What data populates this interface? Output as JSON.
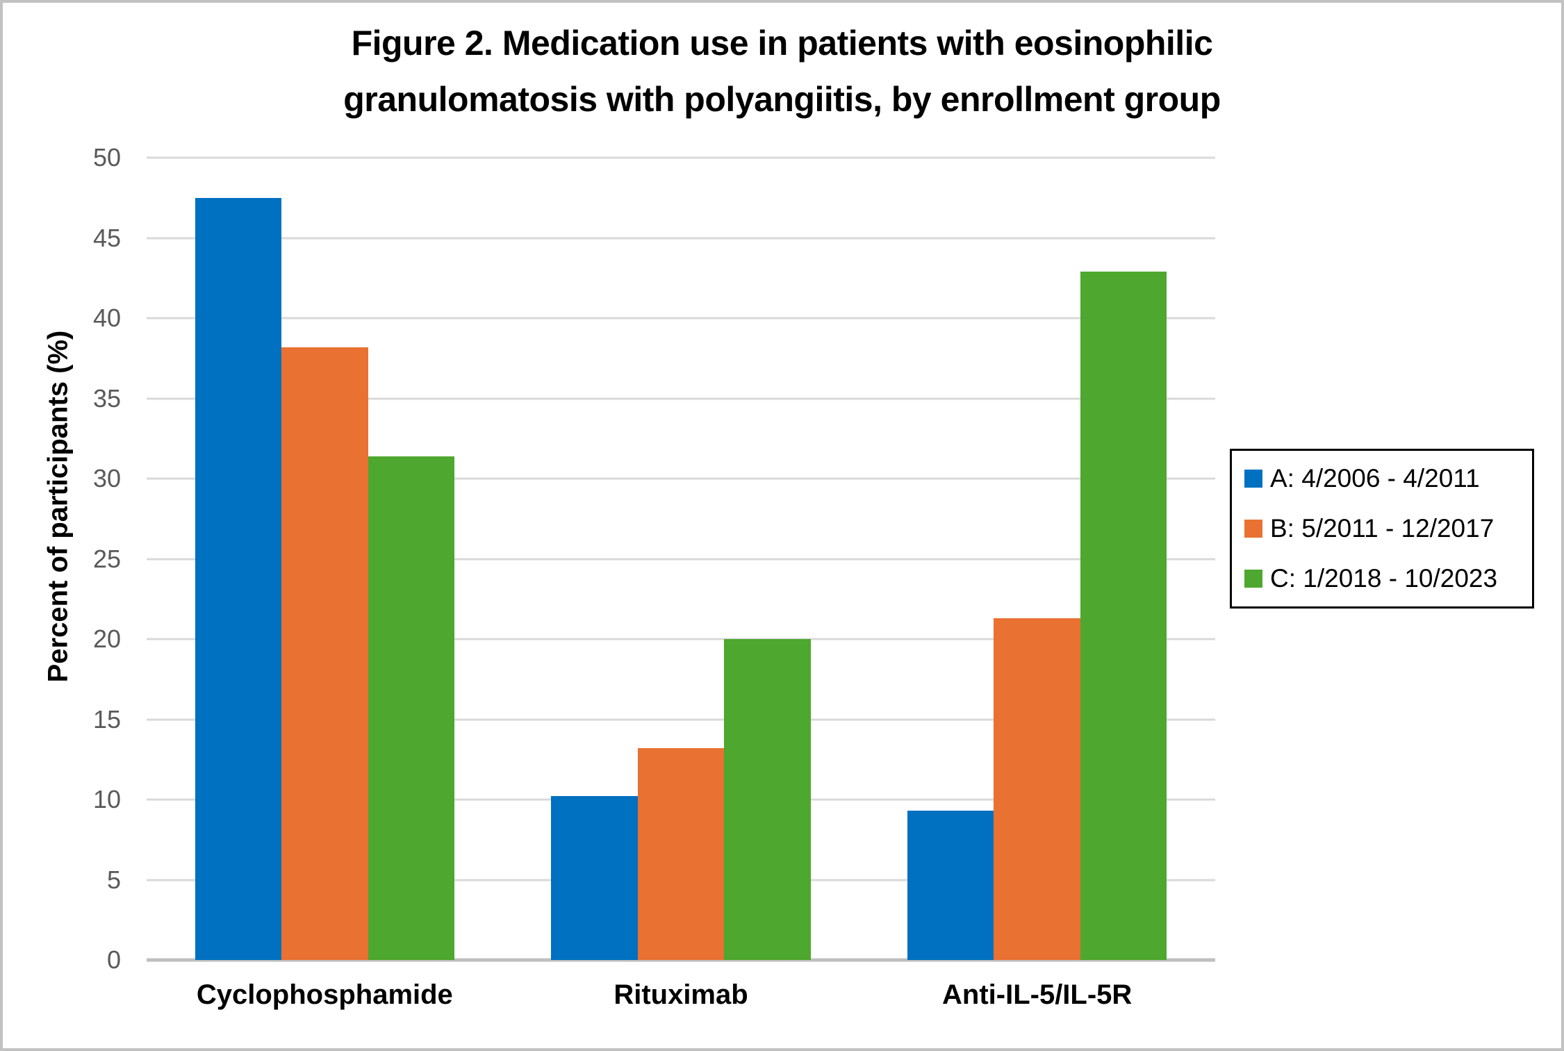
{
  "chart_data": {
    "type": "bar",
    "title": "Figure 2. Medication use in patients with eosinophilic granulomatosis with polyangiitis, by enrollment group",
    "ylabel": "Percent of participants (%)",
    "ylim": [
      0,
      50
    ],
    "ytick_step": 5,
    "yticks": [
      50,
      45,
      40,
      35,
      30,
      25,
      20,
      15,
      10,
      5,
      0
    ],
    "grid": true,
    "legend_position": "right",
    "categories": [
      "Cyclophosphamide",
      "Rituximab",
      "Anti-IL-5/IL-5R"
    ],
    "series": [
      {
        "name": "A: 4/2006 - 4/2011",
        "color": "#0070C0",
        "values": [
          47.5,
          10.2,
          9.3
        ]
      },
      {
        "name": "B: 5/2011 - 12/2017",
        "color": "#E97132",
        "values": [
          38.2,
          13.2,
          21.3
        ]
      },
      {
        "name": "C: 1/2018 - 10/2023",
        "color": "#4EA72E",
        "values": [
          31.4,
          20,
          42.9
        ]
      }
    ],
    "axis_colors": {
      "gridline": "#D9D9D9",
      "axis_line": "#BFBFBF",
      "tick_label": "#595959",
      "text": "#000000"
    }
  }
}
